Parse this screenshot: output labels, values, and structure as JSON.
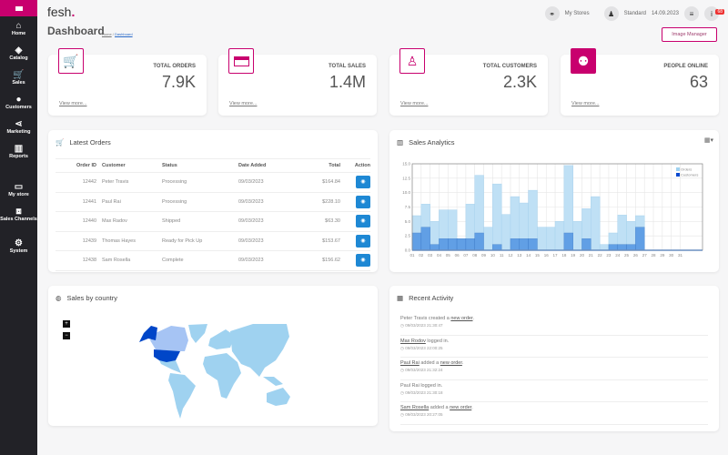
{
  "sidebar": {
    "items": [
      {
        "label": "Home",
        "icon": "home-icon",
        "glyph": "⌂"
      },
      {
        "label": "Catalog",
        "icon": "tag-icon",
        "glyph": "◈"
      },
      {
        "label": "Sales",
        "icon": "cart-icon",
        "glyph": "🛒"
      },
      {
        "label": "Customers",
        "icon": "user-icon",
        "glyph": "●"
      },
      {
        "label": "Marketing",
        "icon": "share-icon",
        "glyph": "⋖"
      },
      {
        "label": "Reports",
        "icon": "bar-chart-icon",
        "glyph": "▥"
      },
      {
        "label": "My store",
        "icon": "monitor-icon",
        "glyph": "▭"
      },
      {
        "label": "Sales Channels",
        "icon": "channels-icon",
        "glyph": "⧈"
      },
      {
        "label": "System",
        "icon": "gear-icon",
        "glyph": "⚙"
      }
    ]
  },
  "header": {
    "logo": "fesh",
    "logo_dot": ".",
    "my_stores": "My Stores",
    "plan": "Standard",
    "date": "14.09.2023",
    "notif_count": "68"
  },
  "page": {
    "title": "Dashboard",
    "breadcrumb": [
      "Home",
      "Dashboard"
    ],
    "image_manager": "Image Manager"
  },
  "stats": [
    {
      "label": "TOTAL ORDERS",
      "value": "7.9K",
      "more": "View more...",
      "icon": "cart-icon"
    },
    {
      "label": "TOTAL SALES",
      "value": "1.4M",
      "more": "View more...",
      "icon": "credit-card-icon"
    },
    {
      "label": "TOTAL CUSTOMERS",
      "value": "2.3K",
      "more": "View more...",
      "icon": "user-icon"
    },
    {
      "label": "PEOPLE ONLINE",
      "value": "63",
      "more": "View more...",
      "icon": "users-icon"
    }
  ],
  "orders": {
    "title": "Latest Orders",
    "columns": [
      "Order ID",
      "Customer",
      "Status",
      "Date Added",
      "Total",
      "Action"
    ],
    "rows": [
      [
        "12442",
        "Peter Travis",
        "Processing",
        "09/03/2023",
        "$164.84"
      ],
      [
        "12441",
        "Paul Rai",
        "Processing",
        "09/03/2023",
        "$228.10"
      ],
      [
        "12440",
        "Max Radov",
        "Shipped",
        "09/03/2023",
        "$63.30"
      ],
      [
        "12439",
        "Thomas Hayes",
        "Ready for Pick Up",
        "09/03/2023",
        "$153.67"
      ],
      [
        "12438",
        "Sam Rosella",
        "Complete",
        "09/03/2023",
        "$156.62"
      ]
    ]
  },
  "analytics": {
    "title": "Sales Analytics"
  },
  "chart_data": {
    "type": "bar",
    "categories": [
      "01",
      "02",
      "03",
      "04",
      "05",
      "06",
      "07",
      "08",
      "09",
      "10",
      "11",
      "12",
      "13",
      "14",
      "15",
      "16",
      "17",
      "18",
      "19",
      "20",
      "21",
      "22",
      "23",
      "24",
      "25",
      "26",
      "27",
      "28",
      "29",
      "30",
      "31"
    ],
    "series": [
      {
        "name": "Orders",
        "color": "#bfe0f5",
        "values": [
          6,
          8,
          5,
          7,
          7,
          2,
          8,
          13,
          4,
          11.5,
          6.2,
          9.3,
          8.2,
          10.4,
          4,
          4,
          5,
          14.7,
          5,
          7.2,
          9.3,
          1,
          3,
          6.1,
          5,
          6,
          0,
          0,
          0,
          0,
          0
        ]
      },
      {
        "name": "Customers",
        "color": "#4a90e2",
        "values": [
          3,
          4,
          1,
          2,
          2,
          2,
          2,
          3,
          0,
          1,
          0,
          2,
          2,
          2,
          0,
          0,
          0,
          3,
          0,
          2,
          0,
          0,
          1,
          1,
          1,
          4,
          0,
          0,
          0,
          0,
          0
        ]
      }
    ],
    "yticks": [
      "0.0",
      "2.5",
      "5.0",
      "7.5",
      "10.0",
      "12.5",
      "15.0"
    ],
    "ylim": [
      0,
      15
    ],
    "grid": true,
    "legend": "top-right"
  },
  "map": {
    "title": "Sales by country",
    "zoom_in": "+",
    "zoom_out": "−",
    "colors": {
      "us": "#0046c8",
      "alaska": "#0046c8",
      "canada": "#a6c4f4",
      "other": "#9fd2f0"
    }
  },
  "activity": {
    "title": "Recent Activity",
    "items": [
      {
        "pre": "Peter Travis created a ",
        "link1": "",
        "mid": "",
        "link2": "new order",
        "post": ".",
        "time": "09/03/2023 21:30:47"
      },
      {
        "pre": "",
        "link1": "Max Rodov",
        "mid": " logged in.",
        "link2": "",
        "post": "",
        "time": "09/03/2023 22:00:25"
      },
      {
        "pre": "",
        "link1": "Paul Rai",
        "mid": " added a ",
        "link2": "new order",
        "post": ".",
        "time": "09/03/2023 21:32:24"
      },
      {
        "pre": "Paul Rai logged in.",
        "link1": "",
        "mid": "",
        "link2": "",
        "post": "",
        "time": "09/03/2023 21:30:18"
      },
      {
        "pre": "",
        "link1": "Sam Rosella",
        "mid": " added a ",
        "link2": "new order",
        "post": ".",
        "time": "09/03/2023 20:27:05"
      }
    ]
  }
}
